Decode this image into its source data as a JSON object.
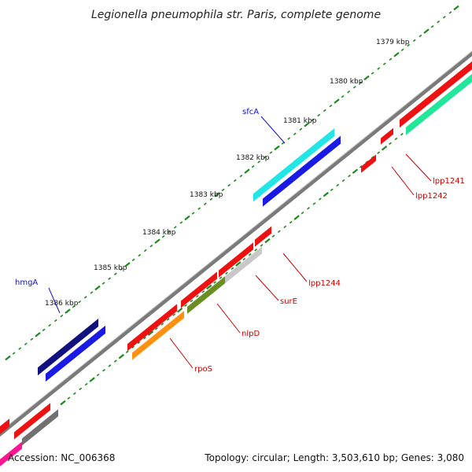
{
  "title": "Legionella pneumophila str. Paris, complete genome",
  "footer": {
    "accession": "Accession: NC_006368",
    "summary": "Topology: circular; Length: 3,503,610 bp; Genes: 3,080"
  },
  "colors": {
    "backbone": "#7a7a7a",
    "tick_dot": "#1a8a1a",
    "label_blue": "#1010c8",
    "label_red": "#cc0000"
  },
  "ticks": [
    {
      "label": "1379 kbp",
      "pos": 1379
    },
    {
      "label": "1380 kbp",
      "pos": 1380
    },
    {
      "label": "1381 kbp",
      "pos": 1381
    },
    {
      "label": "1382 kbp",
      "pos": 1382
    },
    {
      "label": "1383 kbp",
      "pos": 1383
    },
    {
      "label": "1384 kbp",
      "pos": 1384
    },
    {
      "label": "1385 kbp",
      "pos": 1385
    },
    {
      "label": "1386 kbp",
      "pos": 1386
    }
  ],
  "gene_labels": [
    {
      "text": "sfcA",
      "color": "label_blue"
    },
    {
      "text": "hmgA",
      "color": "label_blue"
    },
    {
      "text": "lpp1241",
      "color": "label_red"
    },
    {
      "text": "lpp1242",
      "color": "label_red"
    },
    {
      "text": "lpp1244",
      "color": "label_red"
    },
    {
      "text": "surE",
      "color": "label_red"
    },
    {
      "text": "nlpD",
      "color": "label_red"
    },
    {
      "text": "rpoS",
      "color": "label_red"
    }
  ],
  "features": [
    {
      "name": "sfcA",
      "color": "#22e6e6"
    },
    {
      "name": "sfcA-cds",
      "color": "#1a1ae6"
    },
    {
      "name": "hmgA",
      "color": "#101080"
    },
    {
      "name": "hmgA-cds",
      "color": "#1a1ae6"
    },
    {
      "name": "lpp1241",
      "color": "#ee1111"
    },
    {
      "name": "lpp1242",
      "color": "#ee1111"
    },
    {
      "name": "top-right-gene",
      "color": "#ee1111"
    },
    {
      "name": "top-right-cds",
      "color": "#22e69a"
    },
    {
      "name": "lpp1244",
      "color": "#ee1111"
    },
    {
      "name": "lpp1244-b",
      "color": "#ee1111"
    },
    {
      "name": "surE",
      "color": "#ee1111"
    },
    {
      "name": "surE-cds",
      "color": "#c8c8c8"
    },
    {
      "name": "nlpD",
      "color": "#ee1111"
    },
    {
      "name": "nlpD-cds",
      "color": "#6b8e23"
    },
    {
      "name": "rpoS",
      "color": "#ee1111"
    },
    {
      "name": "rpoS-cds",
      "color": "#ff9010"
    },
    {
      "name": "bottom-left-gene",
      "color": "#ee1111"
    },
    {
      "name": "bottom-left-gene-b",
      "color": "#ee1111"
    },
    {
      "name": "bottom-left-cds",
      "color": "#707070"
    },
    {
      "name": "bottom-left-pink",
      "color": "#ff1493"
    }
  ]
}
